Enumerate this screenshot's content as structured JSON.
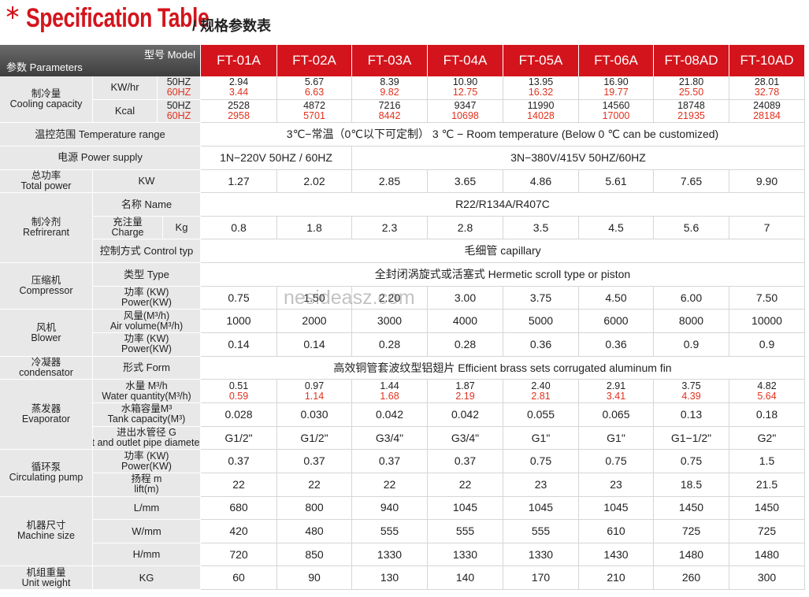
{
  "header": {
    "title": "Specification Table",
    "subtitle": "/ 规格参数表"
  },
  "watermark": "nesideasz.com",
  "table": {
    "corner": {
      "model": "型号 Model",
      "params": "参数 Parameters"
    },
    "models": [
      "FT-01A",
      "FT-02A",
      "FT-03A",
      "FT-04A",
      "FT-05A",
      "FT-06A",
      "FT-08AD",
      "FT-10AD"
    ],
    "groups": [
      {
        "label": [
          "制冷量",
          "Cooling capacity"
        ],
        "rows": [
          {
            "label": "KW/hr",
            "freq": [
              "50HZ",
              "60HZ"
            ],
            "values": [
              "2.94",
              "5.67",
              "8.39",
              "10.90",
              "13.95",
              "16.90",
              "21.80",
              "28.01"
            ],
            "values_60": [
              "3.44",
              "6.63",
              "9.82",
              "12.75",
              "16.32",
              "19.77",
              "25.50",
              "32.78"
            ]
          },
          {
            "label": "Kcal",
            "freq": [
              "50HZ",
              "60HZ"
            ],
            "values": [
              "2528",
              "4872",
              "7216",
              "9347",
              "11990",
              "14560",
              "18748",
              "24089"
            ],
            "values_60": [
              "2958",
              "5701",
              "8442",
              "10698",
              "14028",
              "17000",
              "21935",
              "28184"
            ]
          }
        ]
      },
      {
        "label": [
          "温控范围 Temperature range"
        ],
        "merged": [
          "3℃−常温（0℃以下可定制）  3 ℃ − Room temperature (Below 0 ℃ can be customized)"
        ]
      },
      {
        "label": [
          "电源 Power supply"
        ],
        "merged": [
          "1N−220V 50HZ / 60HZ",
          "3N−380V/415V 50HZ/60HZ"
        ]
      },
      {
        "label": [
          "总功率",
          "Total power"
        ],
        "rows": [
          {
            "label": "KW",
            "values": [
              "1.27",
              "2.02",
              "2.85",
              "3.65",
              "4.86",
              "5.61",
              "7.65",
              "9.90"
            ]
          }
        ]
      },
      {
        "label": [
          "制冷剂",
          "Refrirerant"
        ],
        "rows": [
          {
            "label": "名称 Name",
            "merged": [
              "R22/R134A/R407C"
            ]
          },
          {
            "label": [
              "充注量",
              "Charge"
            ],
            "unit": "Kg",
            "values": [
              "0.8",
              "1.8",
              "2.3",
              "2.8",
              "3.5",
              "4.5",
              "5.6",
              "7"
            ]
          },
          {
            "label": "控制方式 Control typ",
            "merged": [
              "毛细管 capillary"
            ]
          }
        ]
      },
      {
        "label": [
          "压缩机",
          "Compressor"
        ],
        "rows": [
          {
            "label": "类型 Type",
            "merged": [
              "全封闭涡旋式或活塞式 Hermetic scroll type or piston"
            ]
          },
          {
            "label": [
              "功率 (KW)",
              "Power(KW)"
            ],
            "values": [
              "0.75",
              "1.50",
              "2.20",
              "3.00",
              "3.75",
              "4.50",
              "6.00",
              "7.50"
            ]
          }
        ]
      },
      {
        "label": [
          "风机",
          "Blower"
        ],
        "rows": [
          {
            "label": [
              "风量(M³/h)",
              "Air volume(M³/h)"
            ],
            "values": [
              "1000",
              "2000",
              "3000",
              "4000",
              "5000",
              "6000",
              "8000",
              "10000"
            ]
          },
          {
            "label": [
              "功率 (KW)",
              "Power(KW)"
            ],
            "values": [
              "0.14",
              "0.14",
              "0.28",
              "0.28",
              "0.36",
              "0.36",
              "0.9",
              "0.9"
            ]
          }
        ]
      },
      {
        "label": [
          "冷凝器",
          "condensator"
        ],
        "rows": [
          {
            "label": "形式 Form",
            "merged": [
              "高效铜管套波纹型铝翅片 Efficient brass sets corrugated aluminum fin"
            ]
          }
        ]
      },
      {
        "label": [
          "蒸发器",
          "Evaporator"
        ],
        "rows": [
          {
            "label": [
              "水量 M³/h",
              "Water quantity(M³/h)"
            ],
            "values": [
              "0.51",
              "0.97",
              "1.44",
              "1.87",
              "2.40",
              "2.91",
              "3.75",
              "4.82"
            ],
            "values_60": [
              "0.59",
              "1.14",
              "1.68",
              "2.19",
              "2.81",
              "3.41",
              "4.39",
              "5.64"
            ]
          },
          {
            "label": [
              "水箱容量M³",
              "Tank capacity(M³)"
            ],
            "values": [
              "0.028",
              "0.030",
              "0.042",
              "0.042",
              "0.055",
              "0.065",
              "0.13",
              "0.18"
            ]
          },
          {
            "label": [
              "进出水管径 G",
              "Inlet and outlet pipe diameter(G)"
            ],
            "values": [
              "G1/2\"",
              "G1/2\"",
              "G3/4\"",
              "G3/4\"",
              "G1\"",
              "G1\"",
              "G1−1/2\"",
              "G2\""
            ]
          }
        ]
      },
      {
        "label": [
          "循环泵",
          "Circulating pump"
        ],
        "rows": [
          {
            "label": [
              "功率 (KW)",
              "Power(KW)"
            ],
            "values": [
              "0.37",
              "0.37",
              "0.37",
              "0.37",
              "0.75",
              "0.75",
              "0.75",
              "1.5"
            ]
          },
          {
            "label": [
              "扬程 m",
              "lift(m)"
            ],
            "values": [
              "22",
              "22",
              "22",
              "22",
              "23",
              "23",
              "18.5",
              "21.5"
            ]
          }
        ]
      },
      {
        "label": [
          "机器尺寸",
          "Machine size"
        ],
        "rows": [
          {
            "label": "L/mm",
            "values": [
              "680",
              "800",
              "940",
              "1045",
              "1045",
              "1045",
              "1450",
              "1450"
            ]
          },
          {
            "label": "W/mm",
            "values": [
              "420",
              "480",
              "555",
              "555",
              "555",
              "610",
              "725",
              "725"
            ]
          },
          {
            "label": "H/mm",
            "values": [
              "720",
              "850",
              "1330",
              "1330",
              "1330",
              "1430",
              "1480",
              "1480"
            ]
          }
        ]
      },
      {
        "label": [
          "机组重量",
          "Unit weight"
        ],
        "rows": [
          {
            "label": "KG",
            "values": [
              "60",
              "90",
              "130",
              "140",
              "170",
              "210",
              "260",
              "300"
            ]
          }
        ]
      }
    ]
  }
}
